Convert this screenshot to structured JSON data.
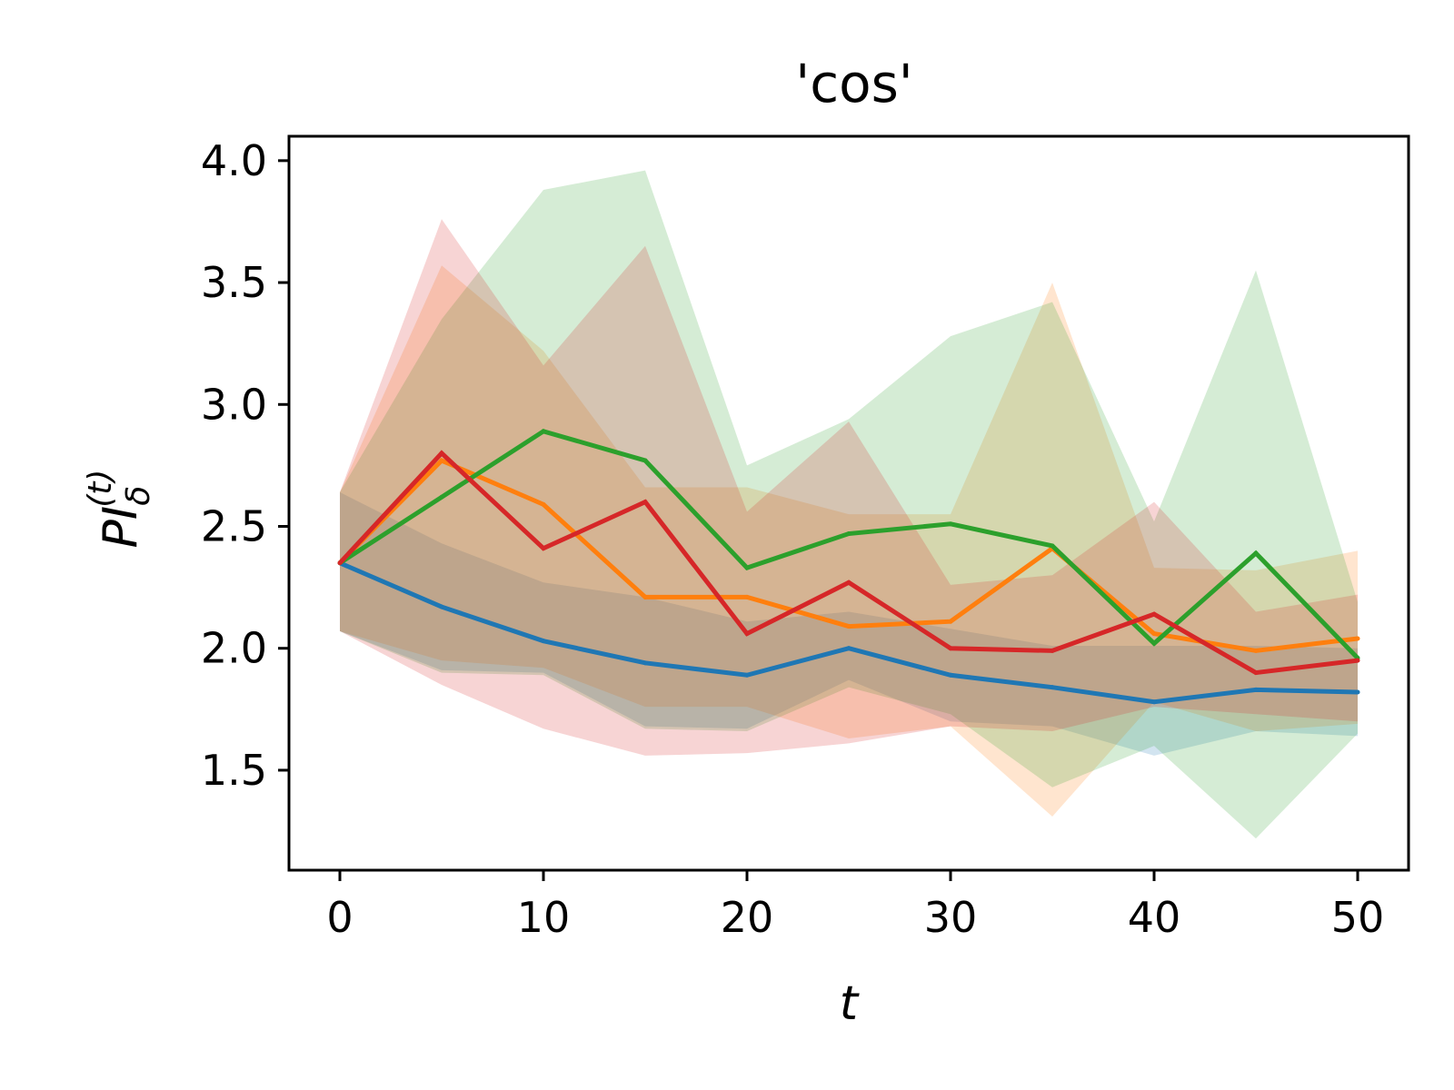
{
  "chart_data": {
    "type": "line",
    "title": "'cos'",
    "xlabel": "t",
    "ylabel": {
      "base": "PI",
      "subscript": "δ",
      "superscript": "(t)"
    },
    "xlim": [
      -2.5,
      52.5
    ],
    "ylim": [
      1.09,
      4.1
    ],
    "xticks": [
      0,
      10,
      20,
      30,
      40,
      50
    ],
    "yticks": [
      1.5,
      2.0,
      2.5,
      3.0,
      3.5,
      4.0
    ],
    "ytick_labels": [
      "1.5",
      "2.0",
      "2.5",
      "3.0",
      "3.5",
      "4.0"
    ],
    "grid": false,
    "x": [
      0,
      5,
      10,
      15,
      20,
      25,
      30,
      35,
      40,
      45,
      50
    ],
    "series": [
      {
        "color": "#1f77b4",
        "values": [
          2.35,
          2.17,
          2.03,
          1.94,
          1.89,
          2.0,
          1.89,
          1.84,
          1.78,
          1.83,
          1.82
        ],
        "lower": [
          2.07,
          1.91,
          1.9,
          1.68,
          1.67,
          1.87,
          1.7,
          1.68,
          1.56,
          1.66,
          1.64
        ],
        "upper": [
          2.64,
          2.43,
          2.27,
          2.21,
          2.11,
          2.15,
          2.08,
          2.01,
          2.01,
          2.01,
          2.0
        ]
      },
      {
        "color": "#ff7f0e",
        "values": [
          2.35,
          2.77,
          2.59,
          2.21,
          2.21,
          2.09,
          2.11,
          2.41,
          2.06,
          1.99,
          2.04
        ],
        "lower": [
          2.07,
          1.95,
          1.92,
          1.76,
          1.76,
          1.63,
          1.68,
          1.31,
          1.78,
          1.66,
          1.69
        ],
        "upper": [
          2.64,
          3.57,
          3.22,
          2.66,
          2.66,
          2.55,
          2.55,
          3.5,
          2.33,
          2.32,
          2.4
        ]
      },
      {
        "color": "#2ca02c",
        "values": [
          2.35,
          2.62,
          2.89,
          2.77,
          2.33,
          2.47,
          2.51,
          2.42,
          2.02,
          2.39,
          1.96
        ],
        "lower": [
          2.07,
          1.9,
          1.89,
          1.67,
          1.66,
          1.84,
          1.73,
          1.43,
          1.6,
          1.22,
          1.65
        ],
        "upper": [
          2.64,
          3.35,
          3.88,
          3.96,
          2.75,
          2.94,
          3.28,
          3.42,
          2.52,
          3.55,
          2.19
        ]
      },
      {
        "color": "#d62728",
        "values": [
          2.35,
          2.8,
          2.41,
          2.6,
          2.06,
          2.27,
          2.0,
          1.99,
          2.14,
          1.9,
          1.95
        ],
        "lower": [
          2.07,
          1.85,
          1.67,
          1.56,
          1.57,
          1.61,
          1.68,
          1.66,
          1.76,
          1.73,
          1.7
        ],
        "upper": [
          2.64,
          3.76,
          3.16,
          3.65,
          2.56,
          2.93,
          2.26,
          2.3,
          2.6,
          2.15,
          2.22
        ]
      }
    ]
  }
}
